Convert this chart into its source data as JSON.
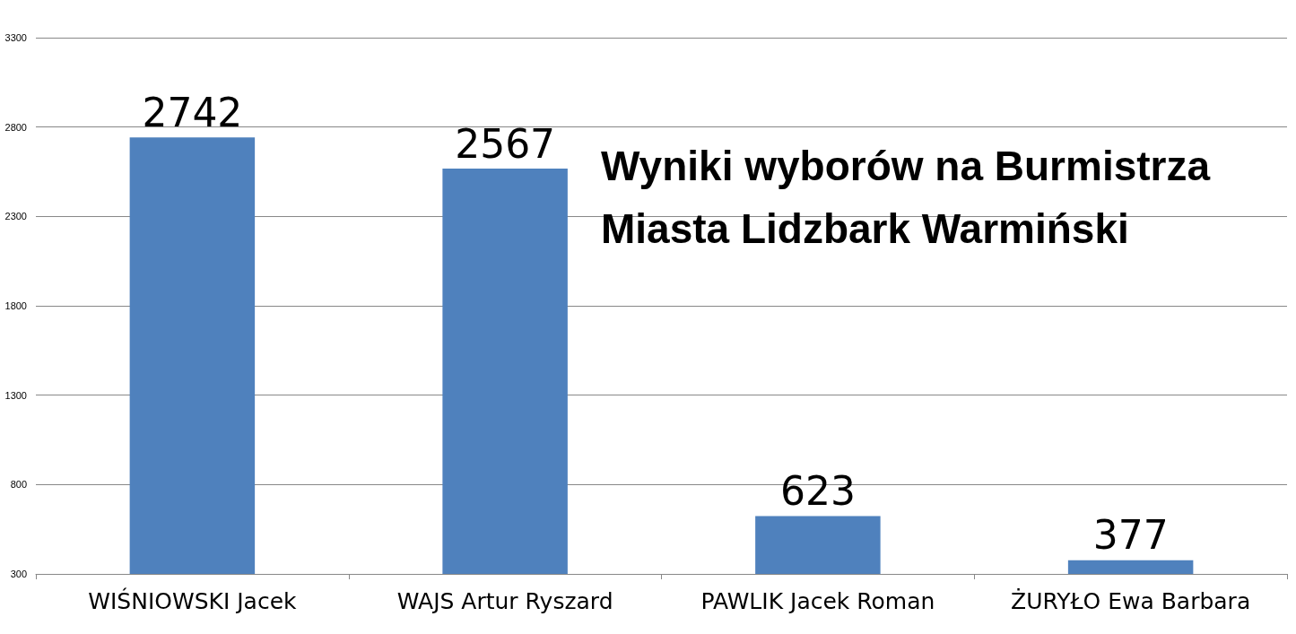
{
  "chart_data": {
    "type": "bar",
    "title": "Wyniki wyborów na Burmistrza Miasta Lidzbark Warmiński",
    "categories": [
      "WIŚNIOWSKI Jacek",
      "WAJS Artur Ryszard",
      "PAWLIK Jacek Roman",
      "ŻURYŁO Ewa Barbara"
    ],
    "values": [
      2742,
      2567,
      623,
      377
    ],
    "color": "#4f81bd",
    "ylim": [
      300,
      3300
    ],
    "yticks": [
      300,
      800,
      1300,
      1800,
      2300,
      2800,
      3300
    ],
    "grid": "y",
    "data_labels": true
  }
}
